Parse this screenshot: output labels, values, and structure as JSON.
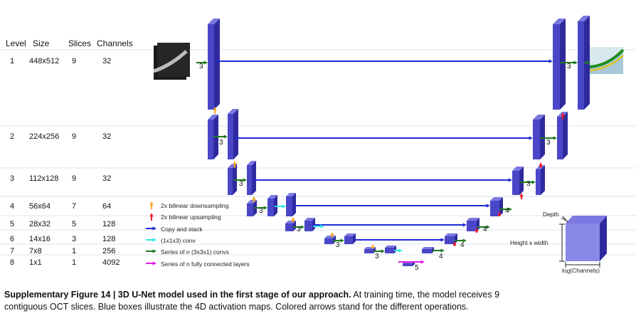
{
  "table": {
    "headers": {
      "level": "Level",
      "size": "Size",
      "slices": "Slices",
      "channels": "Channels"
    },
    "rows": [
      {
        "level": "1",
        "size": "448x512",
        "slices": "9",
        "channels": "32"
      },
      {
        "level": "2",
        "size": "224x256",
        "slices": "9",
        "channels": "32"
      },
      {
        "level": "3",
        "size": "112x128",
        "slices": "9",
        "channels": "32"
      },
      {
        "level": "4",
        "size": "56x64",
        "slices": "7",
        "channels": "64"
      },
      {
        "level": "5",
        "size": "28x32",
        "slices": "5",
        "channels": "128"
      },
      {
        "level": "6",
        "size": "14x16",
        "slices": "3",
        "channels": "128"
      },
      {
        "level": "7",
        "size": "7x8",
        "slices": "1",
        "channels": "256"
      },
      {
        "level": "8",
        "size": "1x1",
        "slices": "1",
        "channels": "4092"
      }
    ]
  },
  "legend": [
    {
      "label": "2x bilinear downsampling",
      "color": "#f5a623",
      "icon": "orange-arrow-icon"
    },
    {
      "label": "2x bilinear upsampling",
      "color": "#e8192c",
      "icon": "red-arrow-icon"
    },
    {
      "label": "Copy and stack",
      "color": "#1f2bd6",
      "icon": "blue-arrow-icon"
    },
    {
      "label": "(1x1x3) conv",
      "color": "#2fe6e6",
      "icon": "cyan-arrow-icon"
    },
    {
      "label": "Series of n (3x3x1) convs",
      "color": "#1f7a1f",
      "icon": "green-arrow-icon"
    },
    {
      "label": "Series of n fully connected layers",
      "color": "#e31ae3",
      "icon": "magenta-arrow-icon"
    }
  ],
  "block_labels": {
    "level1": "3",
    "level2": "3",
    "level3": "3",
    "level4": "3",
    "level5": "3",
    "level6": "3",
    "level7": "3",
    "bottom": "5",
    "up6": "4",
    "up5": "4",
    "up4": "4",
    "up7": "4",
    "up3": "3",
    "up2": "3",
    "up1": "3"
  },
  "dims": {
    "depth": "Depth",
    "hw": "Height x width",
    "channels": "log(Channels)"
  },
  "caption": {
    "bold": "Supplementary Figure 14 | 3D U-Net model used in the first stage of our approach.",
    "text1": " At training time, the model receives 9",
    "text2": "contiguous OCT slices. Blue boxes illustrate the 4D activation maps. Colored arrows stand for the different operations."
  },
  "colors": {
    "box_face": "#4a46c8",
    "box_side": "#2e2a9e",
    "box_top": "#7b78e0",
    "row_line": "#dde3ee"
  }
}
